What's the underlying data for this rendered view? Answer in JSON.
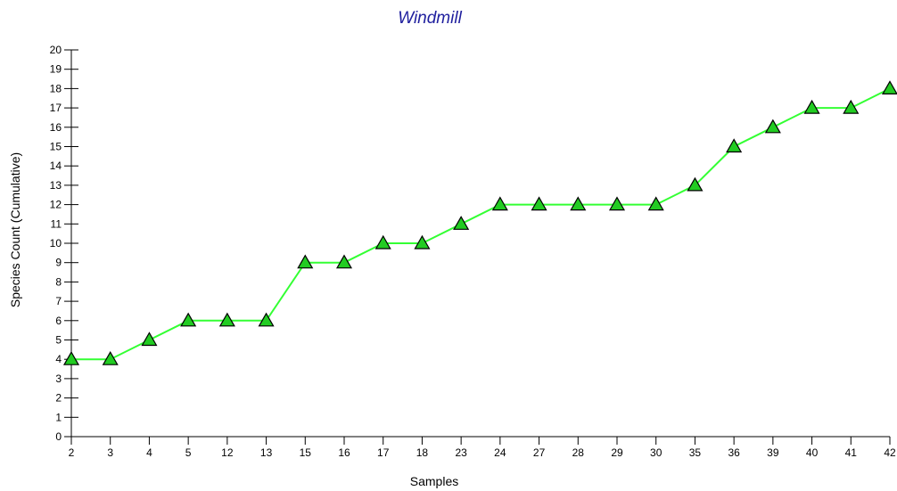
{
  "chart_data": {
    "type": "line",
    "title": "Windmill",
    "xlabel": "Samples",
    "ylabel": "Species Count (Cumulative)",
    "categories": [
      "2",
      "3",
      "4",
      "5",
      "12",
      "13",
      "15",
      "16",
      "17",
      "18",
      "23",
      "24",
      "27",
      "28",
      "29",
      "30",
      "35",
      "36",
      "39",
      "40",
      "41",
      "42"
    ],
    "series": [
      {
        "values": [
          4,
          4,
          5,
          6,
          6,
          6,
          9,
          9,
          10,
          10,
          11,
          12,
          12,
          12,
          12,
          12,
          13,
          15,
          16,
          17,
          17,
          18
        ]
      }
    ],
    "ylim": [
      0,
      20
    ],
    "yticks": [
      0,
      1,
      2,
      3,
      4,
      5,
      6,
      7,
      8,
      9,
      10,
      11,
      12,
      13,
      14,
      15,
      16,
      17,
      18,
      19,
      20
    ],
    "grid": false,
    "legend": "none",
    "colors": {
      "line": "#33ff33",
      "marker_fill": "#22cc22",
      "marker_stroke": "#000000",
      "title": "#1f1f9e",
      "axis": "#000000"
    }
  }
}
